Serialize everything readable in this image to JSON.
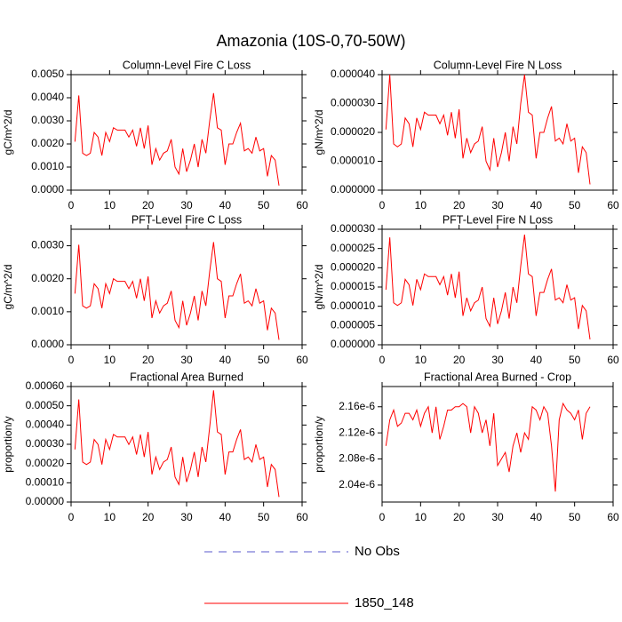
{
  "title": "Amazonia (10S-0,70-50W)",
  "legend": [
    {
      "name": "No Obs",
      "color": "#5a5acd",
      "style": "dashed"
    },
    {
      "name": "1850_148",
      "color": "#ff0000",
      "style": "solid"
    }
  ],
  "chart_data": [
    {
      "type": "line",
      "title": "Column-Level Fire C Loss",
      "ylabel": "gC/m^2/d",
      "color": "#ff0000",
      "x": [
        1,
        2,
        3,
        4,
        5,
        6,
        7,
        8,
        9,
        10,
        11,
        12,
        13,
        14,
        15,
        16,
        17,
        18,
        19,
        20,
        21,
        22,
        23,
        24,
        25,
        26,
        27,
        28,
        29,
        30,
        31,
        32,
        33,
        34,
        35,
        36,
        37,
        38,
        39,
        40,
        41,
        42,
        43,
        44,
        45,
        46,
        47,
        48,
        49,
        50,
        51,
        52,
        53,
        54
      ],
      "values": [
        0.0021,
        0.0041,
        0.0016,
        0.0015,
        0.0016,
        0.0025,
        0.0023,
        0.0015,
        0.0025,
        0.0021,
        0.0027,
        0.0026,
        0.0026,
        0.0026,
        0.0023,
        0.0026,
        0.0019,
        0.0027,
        0.0018,
        0.0028,
        0.0011,
        0.0018,
        0.0013,
        0.0016,
        0.0017,
        0.0022,
        0.001,
        0.0007,
        0.0018,
        0.0008,
        0.0013,
        0.002,
        0.001,
        0.0022,
        0.0016,
        0.003,
        0.0042,
        0.0027,
        0.0026,
        0.0011,
        0.002,
        0.002,
        0.0025,
        0.0029,
        0.0017,
        0.0018,
        0.0016,
        0.0023,
        0.0017,
        0.0018,
        0.0006,
        0.0015,
        0.0013,
        0.0002
      ],
      "xlim": [
        0,
        60
      ],
      "xticks": [
        0,
        10,
        20,
        30,
        40,
        50,
        60
      ],
      "ylim": [
        0,
        0.005
      ],
      "yticks": [
        {
          "value": 0,
          "label": "0.0000"
        },
        {
          "value": 0.001,
          "label": "0.0010"
        },
        {
          "value": 0.002,
          "label": "0.0020"
        },
        {
          "value": 0.003,
          "label": "0.0030"
        },
        {
          "value": 0.004,
          "label": "0.0040"
        },
        {
          "value": 0.005,
          "label": "0.0050"
        }
      ]
    },
    {
      "type": "line",
      "title": "Column-Level Fire N Loss",
      "ylabel": "gN/m^2/d",
      "color": "#ff0000",
      "x": [
        1,
        2,
        3,
        4,
        5,
        6,
        7,
        8,
        9,
        10,
        11,
        12,
        13,
        14,
        15,
        16,
        17,
        18,
        19,
        20,
        21,
        22,
        23,
        24,
        25,
        26,
        27,
        28,
        29,
        30,
        31,
        32,
        33,
        34,
        35,
        36,
        37,
        38,
        39,
        40,
        41,
        42,
        43,
        44,
        45,
        46,
        47,
        48,
        49,
        50,
        51,
        52,
        53,
        54
      ],
      "values": [
        2.1e-05,
        4e-05,
        1.6e-05,
        1.5e-05,
        1.6e-05,
        2.5e-05,
        2.3e-05,
        1.5e-05,
        2.5e-05,
        2.1e-05,
        2.7e-05,
        2.6e-05,
        2.6e-05,
        2.6e-05,
        2.3e-05,
        2.6e-05,
        1.9e-05,
        2.7e-05,
        1.8e-05,
        2.8e-05,
        1.1e-05,
        1.8e-05,
        1.3e-05,
        1.6e-05,
        1.7e-05,
        2.2e-05,
        1e-05,
        7e-06,
        1.8e-05,
        8e-06,
        1.3e-05,
        2e-05,
        1e-05,
        2.2e-05,
        1.6e-05,
        3e-05,
        4e-05,
        2.7e-05,
        2.6e-05,
        1.1e-05,
        2e-05,
        2e-05,
        2.5e-05,
        2.9e-05,
        1.7e-05,
        1.8e-05,
        1.6e-05,
        2.3e-05,
        1.7e-05,
        1.8e-05,
        6e-06,
        1.5e-05,
        1.3e-05,
        2e-06
      ],
      "xlim": [
        0,
        60
      ],
      "xticks": [
        0,
        10,
        20,
        30,
        40,
        50,
        60
      ],
      "ylim": [
        0,
        4e-05
      ],
      "yticks": [
        {
          "value": 0,
          "label": "0.000000"
        },
        {
          "value": 1e-05,
          "label": "0.000010"
        },
        {
          "value": 2e-05,
          "label": "0.000020"
        },
        {
          "value": 3e-05,
          "label": "0.000030"
        },
        {
          "value": 4e-05,
          "label": "0.000040"
        }
      ]
    },
    {
      "type": "line",
      "title": "PFT-Level Fire C Loss",
      "ylabel": "gC/m^2/d",
      "color": "#ff0000",
      "x": [
        1,
        2,
        3,
        4,
        5,
        6,
        7,
        8,
        9,
        10,
        11,
        12,
        13,
        14,
        15,
        16,
        17,
        18,
        19,
        20,
        21,
        22,
        23,
        24,
        25,
        26,
        27,
        28,
        29,
        30,
        31,
        32,
        33,
        34,
        35,
        36,
        37,
        38,
        39,
        40,
        41,
        42,
        43,
        44,
        45,
        46,
        47,
        48,
        49,
        50,
        51,
        52,
        53,
        54
      ],
      "values": [
        0.00155,
        0.00303,
        0.00118,
        0.00111,
        0.00118,
        0.00185,
        0.0017,
        0.00111,
        0.00185,
        0.00155,
        0.002,
        0.00192,
        0.00192,
        0.00192,
        0.0017,
        0.00192,
        0.00141,
        0.002,
        0.00133,
        0.00207,
        0.00081,
        0.00133,
        0.00096,
        0.00118,
        0.00126,
        0.00163,
        0.00074,
        0.00052,
        0.00133,
        0.00059,
        0.00096,
        0.00148,
        0.00074,
        0.00163,
        0.00118,
        0.00222,
        0.00311,
        0.002,
        0.00192,
        0.00081,
        0.00148,
        0.00148,
        0.00185,
        0.00215,
        0.00126,
        0.00133,
        0.00118,
        0.0017,
        0.00126,
        0.00133,
        0.00044,
        0.00111,
        0.00096,
        0.00015
      ],
      "xlim": [
        0,
        60
      ],
      "xticks": [
        0,
        10,
        20,
        30,
        40,
        50,
        60
      ],
      "ylim": [
        0,
        0.0035
      ],
      "yticks": [
        {
          "value": 0,
          "label": "0.0000"
        },
        {
          "value": 0.001,
          "label": "0.0010"
        },
        {
          "value": 0.002,
          "label": "0.0020"
        },
        {
          "value": 0.003,
          "label": "0.0030"
        }
      ]
    },
    {
      "type": "line",
      "title": "PFT-Level Fire N Loss",
      "ylabel": "gN/m^2/d",
      "color": "#ff0000",
      "x": [
        1,
        2,
        3,
        4,
        5,
        6,
        7,
        8,
        9,
        10,
        11,
        12,
        13,
        14,
        15,
        16,
        17,
        18,
        19,
        20,
        21,
        22,
        23,
        24,
        25,
        26,
        27,
        28,
        29,
        30,
        31,
        32,
        33,
        34,
        35,
        36,
        37,
        38,
        39,
        40,
        41,
        42,
        43,
        44,
        45,
        46,
        47,
        48,
        49,
        50,
        51,
        52,
        53,
        54
      ],
      "values": [
        1.43e-05,
        2.79e-05,
        1.09e-05,
        1.02e-05,
        1.09e-05,
        1.7e-05,
        1.56e-05,
        1.02e-05,
        1.7e-05,
        1.43e-05,
        1.84e-05,
        1.77e-05,
        1.77e-05,
        1.77e-05,
        1.56e-05,
        1.77e-05,
        1.29e-05,
        1.84e-05,
        1.22e-05,
        1.9e-05,
        7.5e-06,
        1.22e-05,
        8.8e-06,
        1.09e-05,
        1.16e-05,
        1.5e-05,
        6.8e-06,
        4.8e-06,
        1.22e-05,
        5.4e-06,
        8.8e-06,
        1.36e-05,
        6.8e-06,
        1.5e-05,
        1.09e-05,
        2.04e-05,
        2.86e-05,
        1.84e-05,
        1.77e-05,
        7.5e-06,
        1.36e-05,
        1.36e-05,
        1.7e-05,
        1.97e-05,
        1.16e-05,
        1.22e-05,
        1.09e-05,
        1.56e-05,
        1.16e-05,
        1.22e-05,
        4.1e-06,
        1.02e-05,
        8.8e-06,
        1.4e-06
      ],
      "xlim": [
        0,
        60
      ],
      "xticks": [
        0,
        10,
        20,
        30,
        40,
        50,
        60
      ],
      "ylim": [
        0,
        3e-05
      ],
      "yticks": [
        {
          "value": 0,
          "label": "0.000000"
        },
        {
          "value": 5e-06,
          "label": "0.000005"
        },
        {
          "value": 1e-05,
          "label": "0.000010"
        },
        {
          "value": 1.5e-05,
          "label": "0.000015"
        },
        {
          "value": 2e-05,
          "label": "0.000020"
        },
        {
          "value": 2.5e-05,
          "label": "0.000025"
        },
        {
          "value": 3e-05,
          "label": "0.000030"
        }
      ]
    },
    {
      "type": "line",
      "title": "Fractional Area Burned",
      "ylabel": "proportion/y",
      "color": "#ff0000",
      "x": [
        1,
        2,
        3,
        4,
        5,
        6,
        7,
        8,
        9,
        10,
        11,
        12,
        13,
        14,
        15,
        16,
        17,
        18,
        19,
        20,
        21,
        22,
        23,
        24,
        25,
        26,
        27,
        28,
        29,
        30,
        31,
        32,
        33,
        34,
        35,
        36,
        37,
        38,
        39,
        40,
        41,
        42,
        43,
        44,
        45,
        46,
        47,
        48,
        49,
        50,
        51,
        52,
        53,
        54
      ],
      "values": [
        0.000273,
        0.000533,
        0.000208,
        0.000195,
        0.000208,
        0.000325,
        0.000299,
        0.000195,
        0.000325,
        0.000273,
        0.000351,
        0.000338,
        0.000338,
        0.000338,
        0.000299,
        0.000338,
        0.000247,
        0.000351,
        0.000234,
        0.000364,
        0.000143,
        0.000234,
        0.000169,
        0.000208,
        0.000221,
        0.000286,
        0.00013,
        9.1e-05,
        0.000234,
        0.000104,
        0.000169,
        0.00026,
        0.00013,
        0.000286,
        0.000208,
        0.00039,
        0.00058,
        0.000364,
        0.000351,
        0.000143,
        0.00026,
        0.00026,
        0.000325,
        0.000377,
        0.000221,
        0.000234,
        0.000208,
        0.000299,
        0.000221,
        0.000234,
        7.8e-05,
        0.000195,
        0.000169,
        2.6e-05
      ],
      "xlim": [
        0,
        60
      ],
      "xticks": [
        0,
        10,
        20,
        30,
        40,
        50,
        60
      ],
      "ylim": [
        0,
        0.0006
      ],
      "yticks": [
        {
          "value": 0,
          "label": "0.00000"
        },
        {
          "value": 0.0001,
          "label": "0.00010"
        },
        {
          "value": 0.0002,
          "label": "0.00020"
        },
        {
          "value": 0.0003,
          "label": "0.00030"
        },
        {
          "value": 0.0004,
          "label": "0.00040"
        },
        {
          "value": 0.0005,
          "label": "0.00050"
        },
        {
          "value": 0.0006,
          "label": "0.00060"
        }
      ]
    },
    {
      "type": "line",
      "title": "Fractional Area Burned - Crop",
      "ylabel": "proportion/y",
      "color": "#ff0000",
      "x": [
        1,
        2,
        3,
        4,
        5,
        6,
        7,
        8,
        9,
        10,
        11,
        12,
        13,
        14,
        15,
        16,
        17,
        18,
        19,
        20,
        21,
        22,
        23,
        24,
        25,
        26,
        27,
        28,
        29,
        30,
        31,
        32,
        33,
        34,
        35,
        36,
        37,
        38,
        39,
        40,
        41,
        42,
        43,
        44,
        45,
        46,
        47,
        48,
        49,
        50,
        51,
        52,
        53,
        54
      ],
      "values": [
        2.1e-06,
        2.14e-06,
        2.155e-06,
        2.13e-06,
        2.135e-06,
        2.15e-06,
        2.15e-06,
        2.14e-06,
        2.155e-06,
        2.13e-06,
        2.15e-06,
        2.16e-06,
        2.12e-06,
        2.16e-06,
        2.11e-06,
        2.13e-06,
        2.155e-06,
        2.155e-06,
        2.16e-06,
        2.16e-06,
        2.165e-06,
        2.16e-06,
        2.12e-06,
        2.16e-06,
        2.15e-06,
        2.12e-06,
        2.14e-06,
        2.1e-06,
        2.15e-06,
        2.07e-06,
        2.08e-06,
        2.09e-06,
        2.06e-06,
        2.1e-06,
        2.12e-06,
        2.09e-06,
        2.12e-06,
        2.11e-06,
        2.16e-06,
        2.155e-06,
        2.14e-06,
        2.16e-06,
        2.15e-06,
        2.1e-06,
        2.03e-06,
        2.14e-06,
        2.165e-06,
        2.155e-06,
        2.15e-06,
        2.14e-06,
        2.155e-06,
        2.11e-06,
        2.15e-06,
        2.16e-06
      ],
      "xlim": [
        0,
        60
      ],
      "xticks": [
        0,
        10,
        20,
        30,
        40,
        50,
        60
      ],
      "ylim": [
        2.014e-06,
        2.191e-06
      ],
      "yticks": [
        {
          "value": 2.04e-06,
          "label": "2.04e-6"
        },
        {
          "value": 2.08e-06,
          "label": "2.08e-6"
        },
        {
          "value": 2.12e-06,
          "label": "2.12e-6"
        },
        {
          "value": 2.16e-06,
          "label": "2.16e-6"
        }
      ]
    }
  ]
}
